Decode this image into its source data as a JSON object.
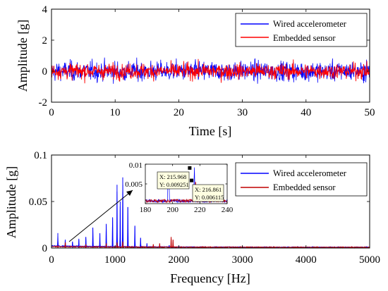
{
  "chart_data": [
    {
      "type": "line",
      "xlabel": "Time [s]",
      "ylabel": "Amplitude [g]",
      "xlim": [
        0,
        50
      ],
      "ylim": [
        -2,
        4
      ],
      "xticks": [
        "0",
        "10",
        "20",
        "30",
        "40",
        "50"
      ],
      "yticks": [
        "-2",
        "0",
        "2",
        "4"
      ],
      "legend_position": "top-right",
      "grid": false,
      "series": [
        {
          "name": "Wired accelerometer",
          "color": "#0000ff",
          "signal": "random-vibration",
          "approx_peak_amplitude": 1.4,
          "approx_rms": 0.45
        },
        {
          "name": "Embedded sensor",
          "color": "#ff0000",
          "signal": "random-vibration",
          "approx_peak_amplitude": 0.9,
          "approx_rms": 0.35
        }
      ]
    },
    {
      "type": "line",
      "xlabel": "Frequency [Hz]",
      "ylabel": "Amplitude [g]",
      "xlim": [
        0,
        5000
      ],
      "ylim": [
        0,
        0.1
      ],
      "xticks": [
        "0",
        "1000",
        "2000",
        "3000",
        "4000",
        "5000"
      ],
      "yticks": [
        "0",
        "0.05",
        "0.1"
      ],
      "legend_position": "top-right",
      "grid": false,
      "series": [
        {
          "name": "Wired accelerometer",
          "color": "#0000ff",
          "peaks": [
            {
              "x": 100,
              "y": 0.016
            },
            {
              "x": 216,
              "y": 0.009
            },
            {
              "x": 330,
              "y": 0.007
            },
            {
              "x": 430,
              "y": 0.01
            },
            {
              "x": 540,
              "y": 0.012
            },
            {
              "x": 650,
              "y": 0.022
            },
            {
              "x": 760,
              "y": 0.016
            },
            {
              "x": 860,
              "y": 0.026
            },
            {
              "x": 960,
              "y": 0.033
            },
            {
              "x": 1030,
              "y": 0.068
            },
            {
              "x": 1080,
              "y": 0.05
            },
            {
              "x": 1120,
              "y": 0.076
            },
            {
              "x": 1200,
              "y": 0.044
            },
            {
              "x": 1310,
              "y": 0.024
            },
            {
              "x": 1400,
              "y": 0.011
            },
            {
              "x": 1500,
              "y": 0.005
            },
            {
              "x": 1850,
              "y": 0.003
            }
          ]
        },
        {
          "name": "Embedded sensor",
          "color": "#c00000",
          "peaks": [
            {
              "x": 100,
              "y": 0.003
            },
            {
              "x": 217,
              "y": 0.006
            },
            {
              "x": 540,
              "y": 0.004
            },
            {
              "x": 860,
              "y": 0.005
            },
            {
              "x": 1030,
              "y": 0.006
            },
            {
              "x": 1120,
              "y": 0.007
            },
            {
              "x": 1600,
              "y": 0.004
            },
            {
              "x": 1700,
              "y": 0.005
            },
            {
              "x": 1880,
              "y": 0.012
            },
            {
              "x": 1910,
              "y": 0.009
            }
          ]
        }
      ],
      "inset": {
        "xlim": [
          180,
          240
        ],
        "ylim": [
          0,
          0.01
        ],
        "xticks": [
          "180",
          "200",
          "220",
          "240"
        ],
        "yticks": [
          "0.005",
          "0.01"
        ],
        "datatips": [
          {
            "x": 215.968,
            "y": 0.009251,
            "x_label": "X: 215.968",
            "y_label": "Y: 0.009251"
          },
          {
            "x": 216.861,
            "y": 0.006115,
            "x_label": "X: 216.861",
            "y_label": "Y: 0.006115"
          }
        ]
      }
    }
  ]
}
